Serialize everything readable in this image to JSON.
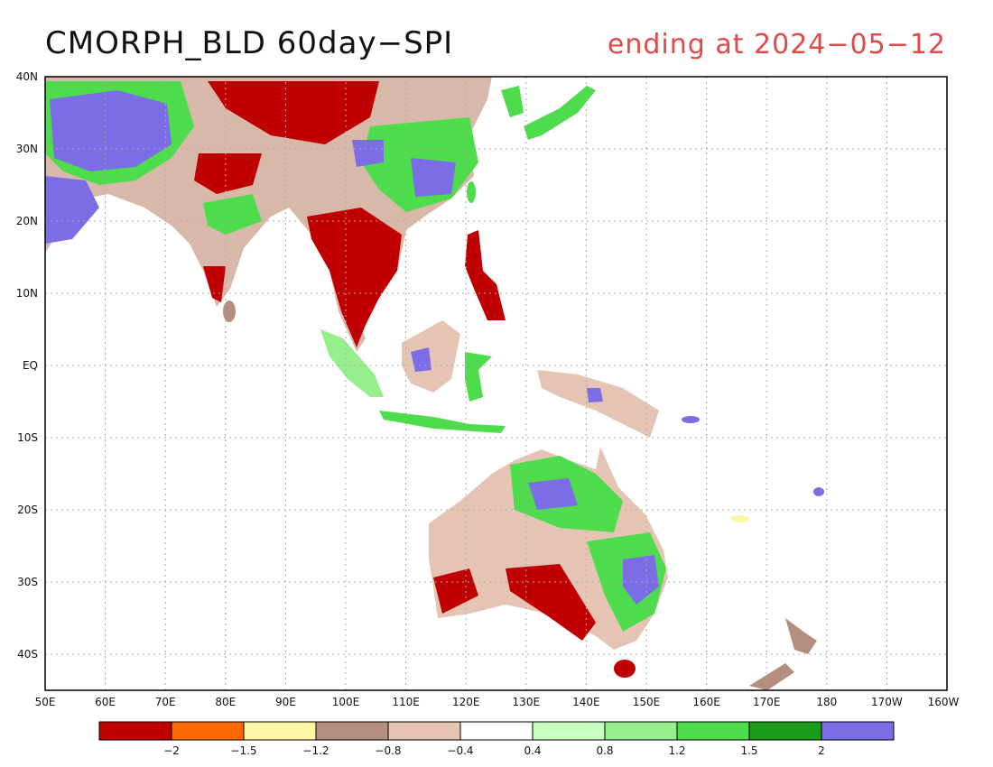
{
  "title": {
    "left": "CMORPH_BLD 60day−SPI",
    "right": "ending at 2024−05−12"
  },
  "axes": {
    "lat_labels": [
      "40N",
      "30N",
      "20N",
      "10N",
      "EQ",
      "10S",
      "20S",
      "30S",
      "40S"
    ],
    "lon_labels": [
      "50E",
      "60E",
      "70E",
      "80E",
      "90E",
      "100E",
      "110E",
      "120E",
      "130E",
      "140E",
      "150E",
      "160E",
      "170E",
      "180",
      "170W",
      "160W"
    ]
  },
  "legend": {
    "colors": [
      "#c00000",
      "#ff6a00",
      "#fff6a8",
      "#b48e7e",
      "#e6c4b4",
      "#ffffff",
      "#c8ffc0",
      "#96ee8c",
      "#4cdc4c",
      "#1a9c1a",
      "#7a6de6"
    ],
    "labels": [
      "−2",
      "−1.5",
      "−1.2",
      "−0.8",
      "−0.4",
      "0.4",
      "0.8",
      "1.2",
      "1.5",
      "2"
    ]
  }
}
